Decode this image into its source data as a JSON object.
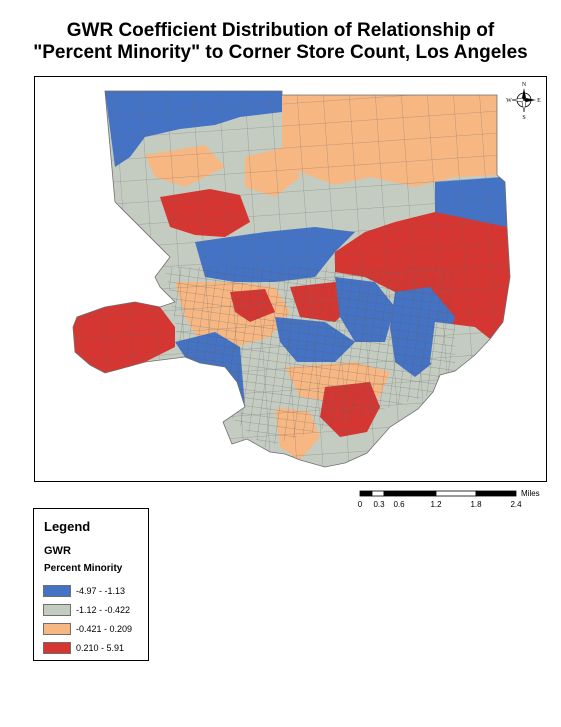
{
  "title": {
    "line1": "GWR Coefficient Distribution of Relationship of",
    "line2": "\"Percent Minority\" to Corner Store Count, Los Angeles"
  },
  "compass": {
    "north": "N",
    "south": "S",
    "east": "E",
    "west": "W"
  },
  "scale_bar": {
    "unit": "Miles",
    "ticks": [
      "0",
      "0.3",
      "0.6",
      "1.2",
      "1.8",
      "2.4"
    ]
  },
  "legend": {
    "title": "Legend",
    "field": "GWR",
    "layer": "Percent Minority",
    "items": [
      {
        "label": "-4.97 - -1.13",
        "color": "#4472c4"
      },
      {
        "label": "-1.12 - -0.422",
        "color": "#c4ccc1"
      },
      {
        "label": "-0.421 - 0.209",
        "color": "#f7b783"
      },
      {
        "label": "0.210 - 5.91",
        "color": "#d63631"
      }
    ]
  },
  "colors": {
    "negative_strong": "#4472c4",
    "negative_weak": "#c4ccc1",
    "neutral": "#f7b783",
    "positive": "#d63631",
    "boundary": "#6f6f6f"
  }
}
